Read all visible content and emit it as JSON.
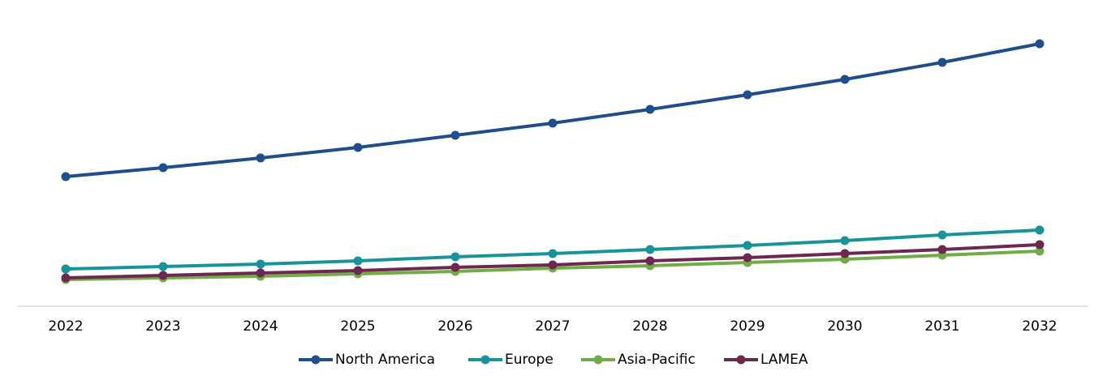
{
  "chart_data": {
    "type": "line",
    "categories": [
      "2022",
      "2023",
      "2024",
      "2025",
      "2026",
      "2027",
      "2028",
      "2029",
      "2030",
      "2031",
      "2032"
    ],
    "series": [
      {
        "name": "North America",
        "color": "#1f4e8c",
        "values": [
          160,
          171,
          183,
          196,
          211,
          226,
          243,
          261,
          280,
          301,
          324
        ]
      },
      {
        "name": "Europe",
        "color": "#17949a",
        "values": [
          46,
          49,
          52,
          56,
          61,
          65,
          70,
          75,
          81,
          88,
          94
        ]
      },
      {
        "name": "Asia-Pacific",
        "color": "#70ad47",
        "values": [
          33,
          35,
          37,
          40,
          43,
          47,
          50,
          54,
          58,
          63,
          68
        ]
      },
      {
        "name": "LAMEA",
        "color": "#6d2750",
        "values": [
          35,
          38,
          41,
          44,
          48,
          51,
          56,
          60,
          65,
          70,
          76
        ]
      }
    ],
    "ylim": [
      0,
      350
    ],
    "legend": "bottom"
  }
}
